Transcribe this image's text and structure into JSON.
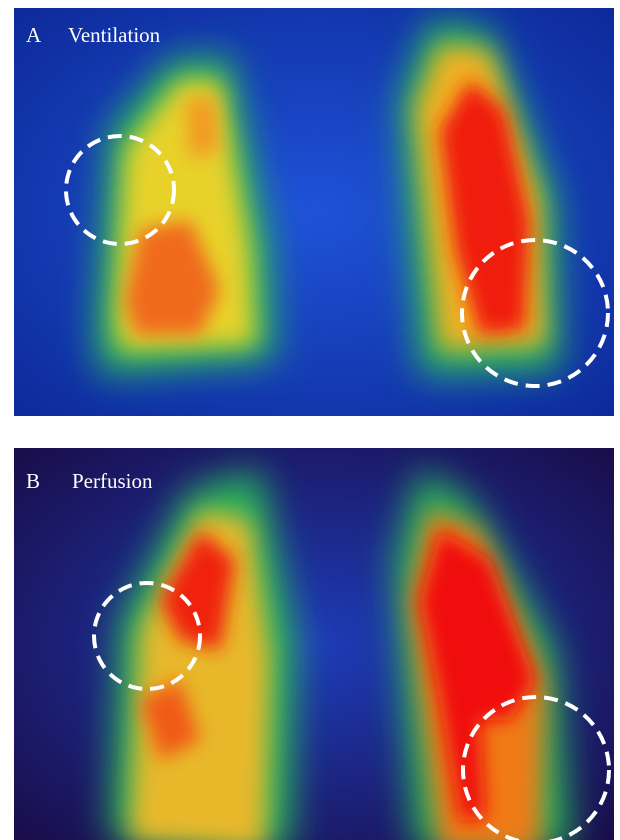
{
  "panels": [
    {
      "letter": "A",
      "label": "Ventilation"
    },
    {
      "letter": "B",
      "label": "Perfusion"
    }
  ]
}
